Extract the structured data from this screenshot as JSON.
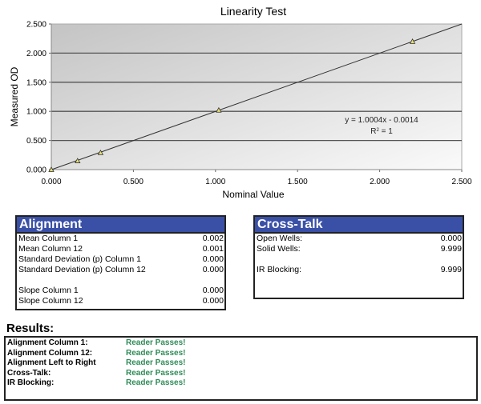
{
  "chart_data": {
    "type": "scatter",
    "title": "Linearity Test",
    "xlabel": "Nominal Value",
    "ylabel": "Measured OD",
    "xlim": [
      0,
      2.5
    ],
    "ylim": [
      0,
      2.5
    ],
    "x_ticks": [
      "0.000",
      "0.500",
      "1.000",
      "1.500",
      "2.000",
      "2.500"
    ],
    "y_ticks": [
      "0.000",
      "0.500",
      "1.000",
      "1.500",
      "2.000",
      "2.500"
    ],
    "grid": "horizontal",
    "legend": "none",
    "series": [
      {
        "name": "Measured",
        "x": [
          0.0,
          0.16,
          0.3,
          1.02,
          2.2
        ],
        "y": [
          0.0,
          0.15,
          0.29,
          1.02,
          2.2
        ],
        "marker": "triangle"
      }
    ],
    "trendline": {
      "type": "linear",
      "slope": 1.0004,
      "intercept": -0.0014,
      "equation_label": "y = 1.0004x - 0.0014",
      "r2_label": "R² = 1",
      "r2_base": "R",
      "r2_sup": "2",
      "r2_rest": " = 1"
    },
    "colors": {
      "plot_bg_top": "#c8c8c8",
      "plot_bg_bottom": "#f8f8f8",
      "gridline": "#555555",
      "line": "#333333",
      "marker_fill": "#e8e070",
      "marker_stroke": "#333333"
    }
  },
  "alignment": {
    "title": "Alignment",
    "rows": [
      {
        "label": "Mean Column 1",
        "value": "0.002"
      },
      {
        "label": "Mean Column 12",
        "value": "0.001"
      },
      {
        "label": "Standard Deviation (p) Column 1",
        "value": "0.000"
      },
      {
        "label": "Standard Deviation (p) Column 12",
        "value": "0.000"
      },
      {
        "label": "",
        "value": ""
      },
      {
        "label": "Slope Column 1",
        "value": "0.000"
      },
      {
        "label": "Slope Column 12",
        "value": "0.000"
      }
    ]
  },
  "crosstalk": {
    "title": "Cross-Talk",
    "rows": [
      {
        "label": "Open Wells:",
        "value": "0.000"
      },
      {
        "label": "Solid Wells:",
        "value": "9.999"
      },
      {
        "label": "",
        "value": ""
      },
      {
        "label": "IR Blocking:",
        "value": "9.999"
      }
    ]
  },
  "results": {
    "title": "Results:",
    "rows": [
      {
        "label": "Alignment Column 1:",
        "value": "Reader Passes!"
      },
      {
        "label": "Alignment Column 12:",
        "value": "Reader Passes!"
      },
      {
        "label": "Alignment Left to Right",
        "value": "Reader Passes!"
      },
      {
        "label": "Cross-Talk:",
        "value": "Reader Passes!"
      },
      {
        "label": "IR Blocking:",
        "value": "Reader Passes!"
      }
    ]
  },
  "theme": {
    "header_blue": "#3a50a6",
    "pass_green": "#2e8b57"
  }
}
